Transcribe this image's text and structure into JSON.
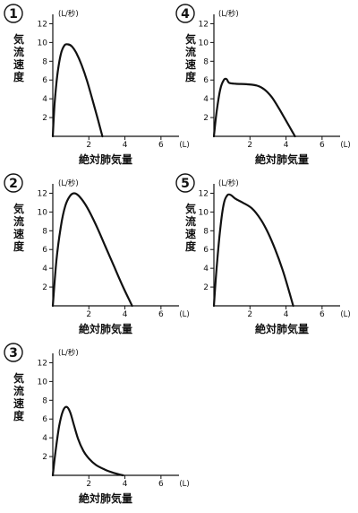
{
  "chart_data": [
    {
      "type": "line",
      "number": "1",
      "ylabel": "気流速度",
      "xlabel": "絶対肺気量",
      "y_unit": "(L/秒)",
      "x_unit": "(L)",
      "yticks": [
        "2",
        "4",
        "6",
        "8",
        "10",
        "12"
      ],
      "xticks": [
        "2",
        "4",
        "6"
      ],
      "xlim": [
        0,
        7
      ],
      "ylim": [
        0,
        13
      ],
      "series": [
        {
          "x": [
            0,
            0.1,
            0.25,
            0.45,
            0.65,
            0.85,
            1.05,
            1.3,
            1.6,
            1.9,
            2.2,
            2.5,
            2.75
          ],
          "y": [
            0,
            3.5,
            6.5,
            8.8,
            9.7,
            9.8,
            9.6,
            8.9,
            7.6,
            5.9,
            3.9,
            1.8,
            0
          ]
        }
      ]
    },
    {
      "type": "line",
      "number": "2",
      "ylabel": "気流速度",
      "xlabel": "絶対肺気量",
      "y_unit": "(L/秒)",
      "x_unit": "(L)",
      "yticks": [
        "2",
        "4",
        "6",
        "8",
        "10",
        "12"
      ],
      "xticks": [
        "2",
        "4",
        "6"
      ],
      "xlim": [
        0,
        7
      ],
      "ylim": [
        0,
        13
      ],
      "series": [
        {
          "x": [
            0,
            0.2,
            0.45,
            0.7,
            0.95,
            1.2,
            1.5,
            1.9,
            2.4,
            2.9,
            3.4,
            3.9,
            4.4
          ],
          "y": [
            0,
            4.8,
            8.5,
            10.7,
            11.7,
            12.0,
            11.6,
            10.5,
            8.6,
            6.4,
            4.2,
            2.0,
            0
          ]
        }
      ]
    },
    {
      "type": "line",
      "number": "3",
      "ylabel": "気流速度",
      "xlabel": "絶対肺気量",
      "y_unit": "(L/秒)",
      "x_unit": "(L)",
      "yticks": [
        "2",
        "4",
        "6",
        "8",
        "10",
        "12"
      ],
      "xticks": [
        "2",
        "4",
        "6"
      ],
      "xlim": [
        0,
        7
      ],
      "ylim": [
        0,
        13
      ],
      "series": [
        {
          "x": [
            0,
            0.15,
            0.35,
            0.55,
            0.75,
            0.95,
            1.15,
            1.4,
            1.7,
            2.0,
            2.4,
            2.9,
            3.4,
            3.9
          ],
          "y": [
            0,
            2.5,
            5.2,
            6.8,
            7.3,
            6.8,
            5.5,
            3.9,
            2.6,
            1.8,
            1.1,
            0.6,
            0.25,
            0
          ]
        }
      ]
    },
    {
      "type": "line",
      "number": "4",
      "ylabel": "気流速度",
      "xlabel": "絶対肺気量",
      "y_unit": "(L/秒)",
      "x_unit": "(L)",
      "yticks": [
        "2",
        "4",
        "6",
        "8",
        "10",
        "12"
      ],
      "xticks": [
        "2",
        "4",
        "6"
      ],
      "xlim": [
        0,
        7
      ],
      "ylim": [
        0,
        13
      ],
      "series": [
        {
          "x": [
            0,
            0.15,
            0.35,
            0.55,
            0.7,
            0.85,
            1.2,
            1.8,
            2.4,
            2.8,
            3.2,
            3.6,
            3.9,
            4.2,
            4.5
          ],
          "y": [
            0,
            2.6,
            5.0,
            6.0,
            6.1,
            5.7,
            5.6,
            5.55,
            5.4,
            5.0,
            4.2,
            3.0,
            2.0,
            1.0,
            0
          ]
        }
      ]
    },
    {
      "type": "line",
      "number": "5",
      "ylabel": "気流速度",
      "xlabel": "絶対肺気量",
      "y_unit": "(L/秒)",
      "x_unit": "(L)",
      "yticks": [
        "2",
        "4",
        "6",
        "8",
        "10",
        "12"
      ],
      "xticks": [
        "2",
        "4",
        "6"
      ],
      "xlim": [
        0,
        7
      ],
      "ylim": [
        0,
        13
      ],
      "series": [
        {
          "x": [
            0,
            0.15,
            0.35,
            0.55,
            0.75,
            0.95,
            1.2,
            1.6,
            2.1,
            2.6,
            3.0,
            3.4,
            3.8,
            4.1,
            4.4
          ],
          "y": [
            0,
            4.0,
            8.2,
            10.9,
            11.8,
            11.8,
            11.4,
            11.0,
            10.4,
            9.2,
            7.8,
            6.0,
            3.9,
            2.0,
            0
          ]
        }
      ]
    }
  ]
}
